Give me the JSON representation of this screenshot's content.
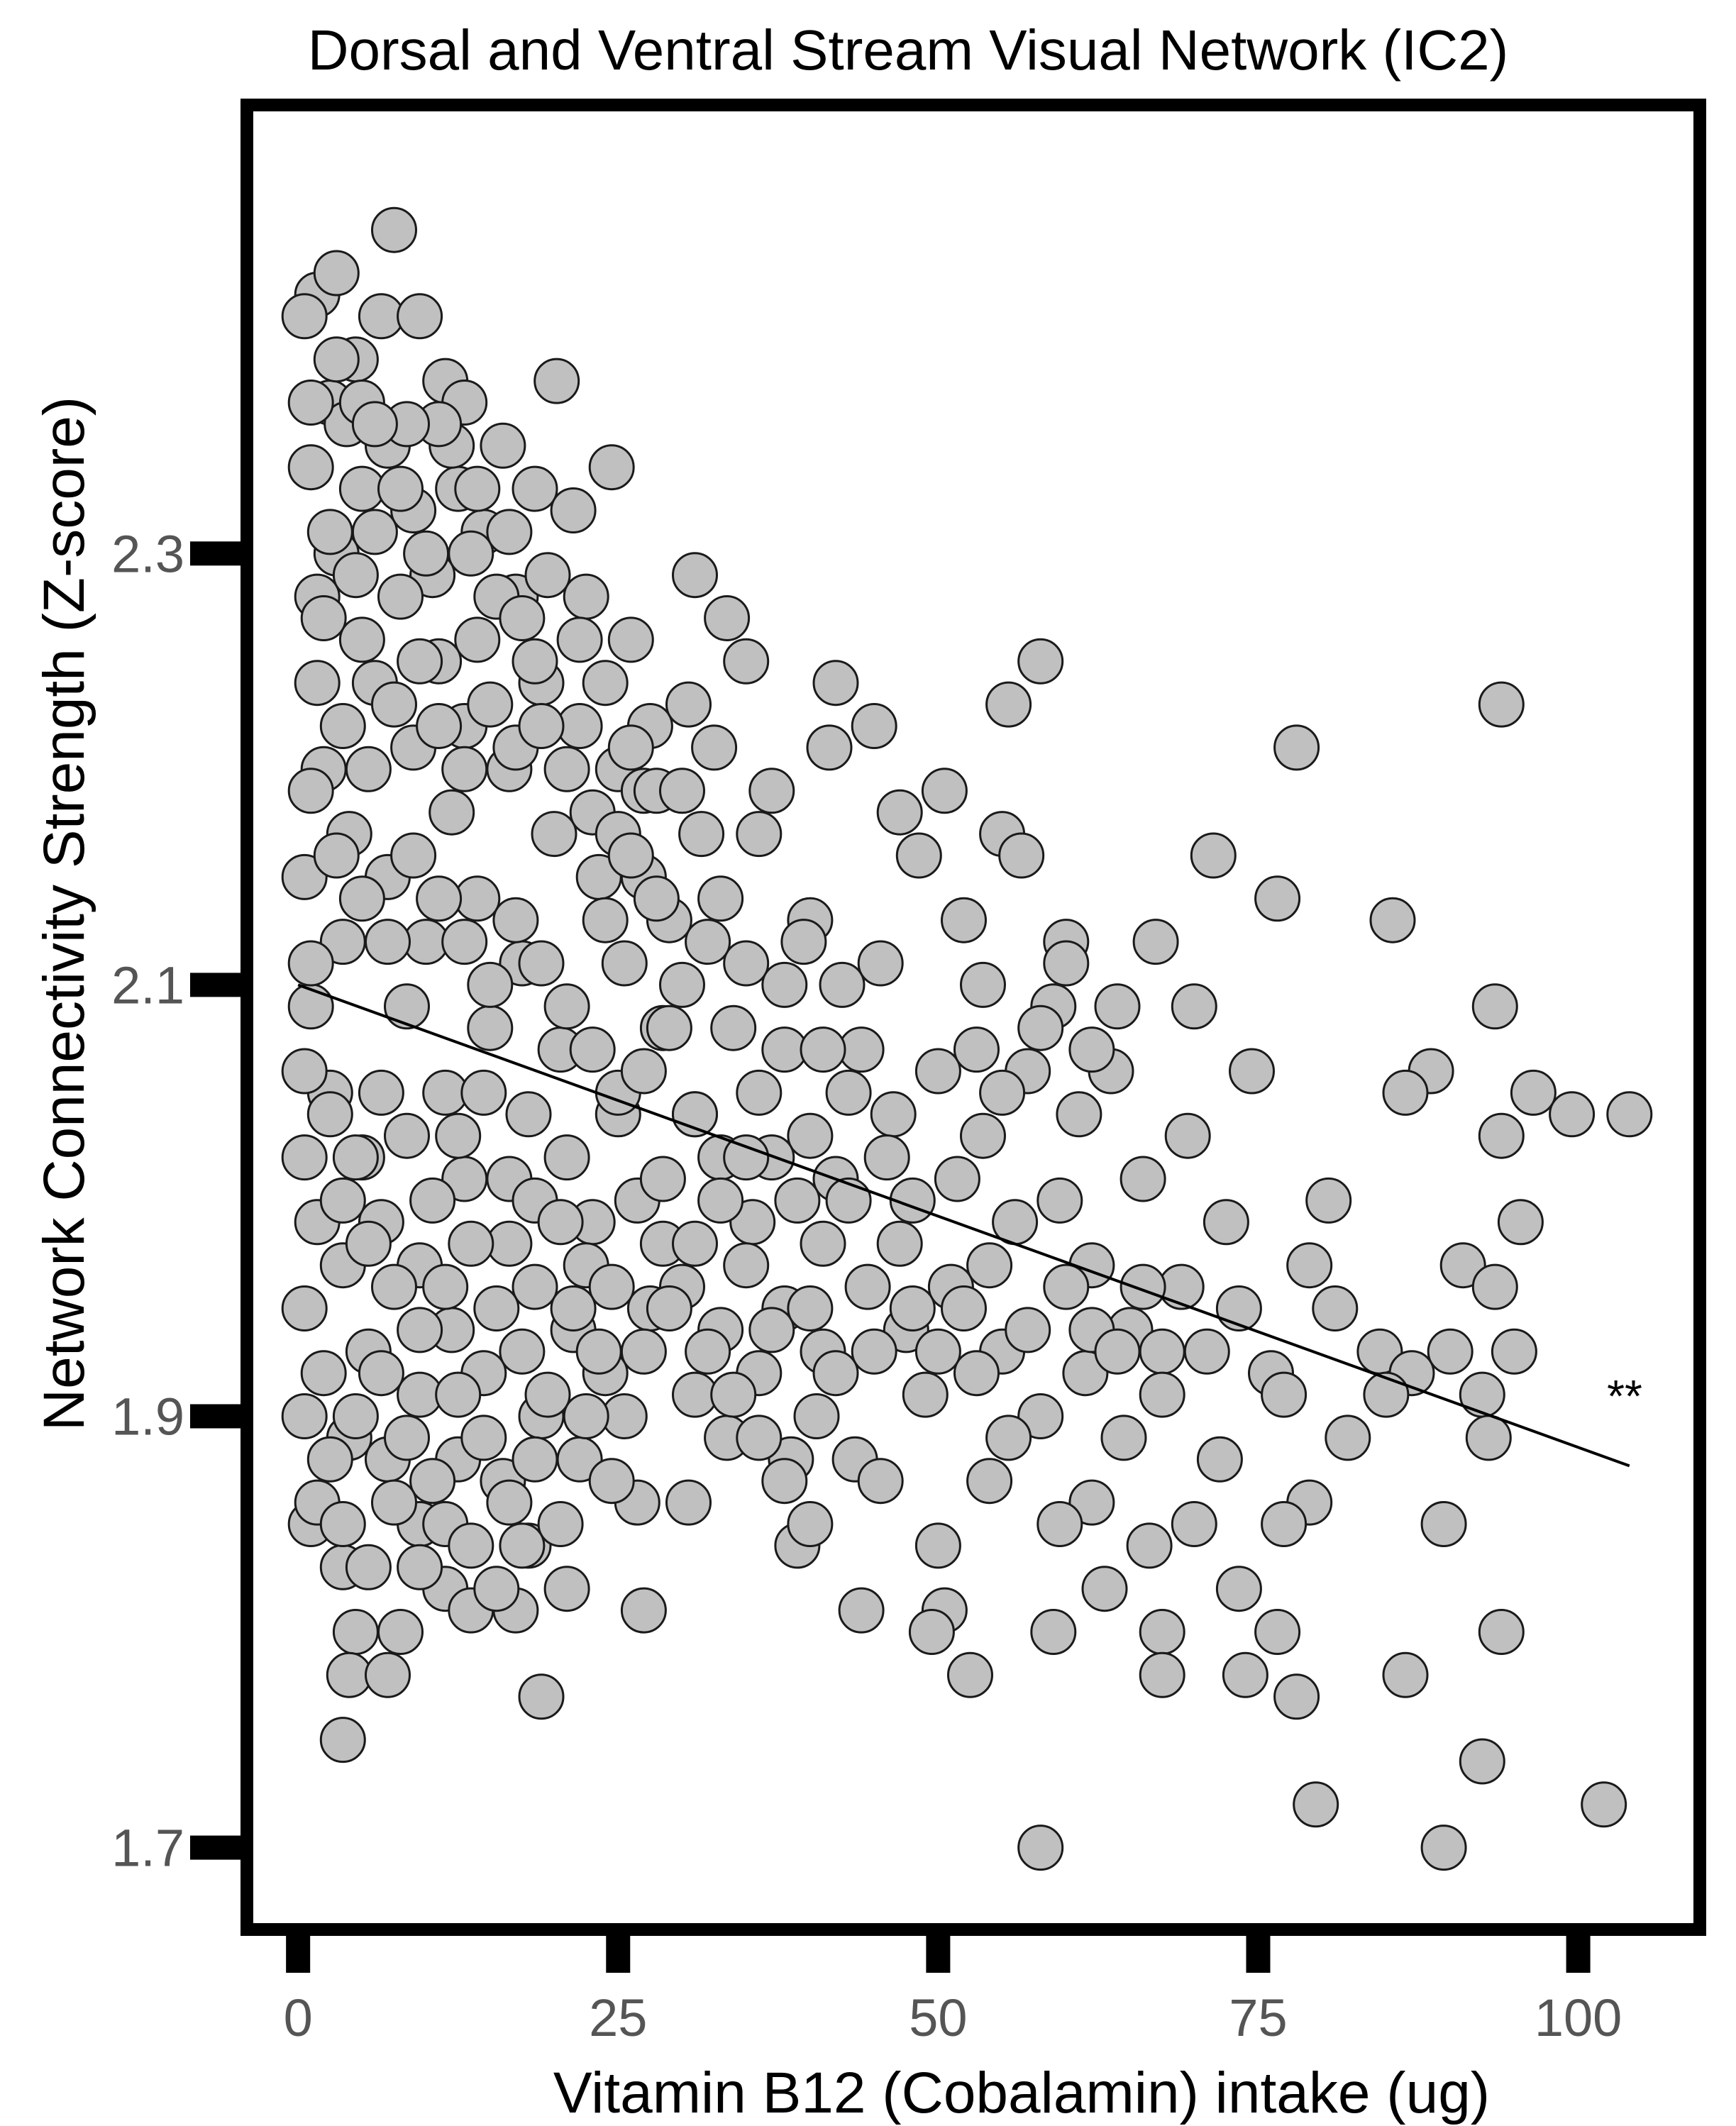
{
  "chart_data": {
    "type": "scatter",
    "title": "Dorsal and Ventral Stream Visual Network (IC2)",
    "xlabel": "Vitamin B12 (Cobalamin) intake (ug)",
    "ylabel": "Network Connectivity Strength (Z-score)",
    "xlim": [
      -3.5,
      109
    ],
    "ylim": [
      1.665,
      2.505
    ],
    "xticks": [
      0,
      25,
      50,
      75,
      100
    ],
    "xtick_labels": [
      "0",
      "25",
      "50",
      "75",
      "100"
    ],
    "yticks": [
      1.7,
      1.9,
      2.1,
      2.3
    ],
    "ytick_labels": [
      "1.7",
      "1.9",
      "2.1",
      "2.3"
    ],
    "grid": false,
    "legend": "none",
    "annotation": "**",
    "colors": {
      "point_fill": "#c0c0c0",
      "point_stroke": "#1a1a1a",
      "line": "#000000",
      "frame": "#000000"
    },
    "trend_line": {
      "x": [
        0,
        104
      ],
      "y": [
        2.1,
        1.877
      ]
    },
    "points": [
      [
        7.5,
        2.45
      ],
      [
        1.5,
        2.42
      ],
      [
        3,
        2.43
      ],
      [
        6.5,
        2.41
      ],
      [
        9.5,
        2.41
      ],
      [
        0.5,
        2.41
      ],
      [
        4.5,
        2.39
      ],
      [
        2.5,
        2.37
      ],
      [
        11.5,
        2.38
      ],
      [
        20.2,
        2.38
      ],
      [
        13,
        2.37
      ],
      [
        3.8,
        2.36
      ],
      [
        7,
        2.35
      ],
      [
        16,
        2.35
      ],
      [
        24.5,
        2.34
      ],
      [
        12.5,
        2.33
      ],
      [
        18.5,
        2.33
      ],
      [
        5,
        2.33
      ],
      [
        9,
        2.32
      ],
      [
        14.5,
        2.31
      ],
      [
        21.5,
        2.32
      ],
      [
        3,
        2.3
      ],
      [
        10.5,
        2.29
      ],
      [
        31,
        2.29
      ],
      [
        17,
        2.28
      ],
      [
        8,
        2.28
      ],
      [
        1.5,
        2.28
      ],
      [
        22.5,
        2.28
      ],
      [
        33.5,
        2.27
      ],
      [
        14,
        2.26
      ],
      [
        26,
        2.26
      ],
      [
        5,
        2.26
      ],
      [
        11,
        2.25
      ],
      [
        19,
        2.24
      ],
      [
        35,
        2.25
      ],
      [
        42,
        2.24
      ],
      [
        58,
        2.25
      ],
      [
        6,
        2.24
      ],
      [
        13,
        2.22
      ],
      [
        22,
        2.22
      ],
      [
        27.5,
        2.22
      ],
      [
        30.5,
        2.23
      ],
      [
        45,
        2.22
      ],
      [
        55.5,
        2.23
      ],
      [
        94,
        2.23
      ],
      [
        2,
        2.2
      ],
      [
        9,
        2.21
      ],
      [
        16.5,
        2.2
      ],
      [
        25,
        2.2
      ],
      [
        37,
        2.19
      ],
      [
        41.5,
        2.21
      ],
      [
        50.5,
        2.19
      ],
      [
        78,
        2.21
      ],
      [
        4,
        2.17
      ],
      [
        12,
        2.18
      ],
      [
        20,
        2.17
      ],
      [
        27,
        2.19
      ],
      [
        31.5,
        2.17
      ],
      [
        36,
        2.17
      ],
      [
        47,
        2.18
      ],
      [
        48.5,
        2.16
      ],
      [
        55,
        2.17
      ],
      [
        56.5,
        2.16
      ],
      [
        71.5,
        2.16
      ],
      [
        0.5,
        2.15
      ],
      [
        7,
        2.15
      ],
      [
        14,
        2.14
      ],
      [
        23.5,
        2.15
      ],
      [
        33,
        2.14
      ],
      [
        40,
        2.13
      ],
      [
        52,
        2.13
      ],
      [
        60,
        2.12
      ],
      [
        67,
        2.12
      ],
      [
        76.5,
        2.14
      ],
      [
        85.5,
        2.13
      ],
      [
        3.5,
        2.12
      ],
      [
        10,
        2.12
      ],
      [
        17.5,
        2.11
      ],
      [
        25.5,
        2.11
      ],
      [
        35,
        2.11
      ],
      [
        42.5,
        2.1
      ],
      [
        45.5,
        2.11
      ],
      [
        53.5,
        2.1
      ],
      [
        59,
        2.09
      ],
      [
        70,
        2.09
      ],
      [
        93.5,
        2.09
      ],
      [
        1,
        2.09
      ],
      [
        8.5,
        2.09
      ],
      [
        15,
        2.08
      ],
      [
        20.5,
        2.07
      ],
      [
        28.5,
        2.08
      ],
      [
        38,
        2.07
      ],
      [
        44,
        2.07
      ],
      [
        50,
        2.06
      ],
      [
        57,
        2.06
      ],
      [
        63.5,
        2.06
      ],
      [
        74.5,
        2.06
      ],
      [
        88.5,
        2.06
      ],
      [
        96.5,
        2.05
      ],
      [
        2.5,
        2.05
      ],
      [
        11.5,
        2.05
      ],
      [
        18,
        2.04
      ],
      [
        25,
        2.04
      ],
      [
        31,
        2.04
      ],
      [
        40,
        2.03
      ],
      [
        46.5,
        2.04
      ],
      [
        53.5,
        2.03
      ],
      [
        61,
        2.04
      ],
      [
        69.5,
        2.03
      ],
      [
        86.5,
        2.05
      ],
      [
        99.5,
        2.04
      ],
      [
        104,
        2.04
      ],
      [
        5,
        2.02
      ],
      [
        13,
        2.01
      ],
      [
        21,
        2.02
      ],
      [
        33,
        2.02
      ],
      [
        42,
        2.01
      ],
      [
        51.5,
        2.01
      ],
      [
        59.5,
        2.0
      ],
      [
        66,
        2.01
      ],
      [
        94,
        2.03
      ],
      [
        6.5,
        1.99
      ],
      [
        16.5,
        1.98
      ],
      [
        23,
        1.99
      ],
      [
        28.5,
        1.98
      ],
      [
        35.5,
        1.99
      ],
      [
        47,
        1.98
      ],
      [
        56,
        1.99
      ],
      [
        72.5,
        1.99
      ],
      [
        80.5,
        2.0
      ],
      [
        95.5,
        1.99
      ],
      [
        3.5,
        1.97
      ],
      [
        9.5,
        1.97
      ],
      [
        18.5,
        1.96
      ],
      [
        30,
        1.96
      ],
      [
        38,
        1.95
      ],
      [
        44.5,
        1.96
      ],
      [
        51,
        1.96
      ],
      [
        62,
        1.97
      ],
      [
        69,
        1.96
      ],
      [
        79,
        1.97
      ],
      [
        91,
        1.97
      ],
      [
        0.5,
        1.95
      ],
      [
        12,
        1.94
      ],
      [
        21.5,
        1.94
      ],
      [
        27.5,
        1.95
      ],
      [
        33,
        1.94
      ],
      [
        41,
        1.93
      ],
      [
        47.5,
        1.94
      ],
      [
        55,
        1.93
      ],
      [
        65,
        1.94
      ],
      [
        73.5,
        1.95
      ],
      [
        81,
        1.95
      ],
      [
        93.5,
        1.96
      ],
      [
        5.5,
        1.93
      ],
      [
        14.5,
        1.92
      ],
      [
        24,
        1.92
      ],
      [
        36,
        1.92
      ],
      [
        45,
        1.93
      ],
      [
        53,
        1.92
      ],
      [
        61.5,
        1.92
      ],
      [
        67.5,
        1.93
      ],
      [
        76,
        1.92
      ],
      [
        84.5,
        1.93
      ],
      [
        87,
        1.92
      ],
      [
        90,
        1.93
      ],
      [
        95,
        1.93
      ],
      [
        2,
        1.92
      ],
      [
        9.5,
        1.91
      ],
      [
        19,
        1.9
      ],
      [
        31,
        1.91
      ],
      [
        40.5,
        1.9
      ],
      [
        49,
        1.91
      ],
      [
        58,
        1.9
      ],
      [
        67.5,
        1.91
      ],
      [
        77,
        1.91
      ],
      [
        85,
        1.91
      ],
      [
        92.5,
        1.91
      ],
      [
        4,
        1.89
      ],
      [
        12.5,
        1.88
      ],
      [
        22,
        1.88
      ],
      [
        33.5,
        1.89
      ],
      [
        43.5,
        1.88
      ],
      [
        55.5,
        1.89
      ],
      [
        64.5,
        1.89
      ],
      [
        72,
        1.88
      ],
      [
        82,
        1.89
      ],
      [
        93,
        1.89
      ],
      [
        7,
        1.88
      ],
      [
        16,
        1.87
      ],
      [
        26.5,
        1.86
      ],
      [
        38.5,
        1.88
      ],
      [
        45.5,
        1.87
      ],
      [
        54,
        1.87
      ],
      [
        62,
        1.86
      ],
      [
        70,
        1.85
      ],
      [
        79,
        1.86
      ],
      [
        89.5,
        1.85
      ],
      [
        1,
        1.85
      ],
      [
        9.5,
        1.85
      ],
      [
        18,
        1.84
      ],
      [
        30.5,
        1.86
      ],
      [
        39,
        1.84
      ],
      [
        50,
        1.84
      ],
      [
        59.5,
        1.85
      ],
      [
        66.5,
        1.84
      ],
      [
        77,
        1.85
      ],
      [
        3.5,
        1.83
      ],
      [
        11.5,
        1.82
      ],
      [
        21,
        1.82
      ],
      [
        27,
        1.81
      ],
      [
        44,
        1.81
      ],
      [
        50.5,
        1.81
      ],
      [
        63,
        1.82
      ],
      [
        73.5,
        1.82
      ],
      [
        4.5,
        1.8
      ],
      [
        8,
        1.8
      ],
      [
        13.5,
        1.81
      ],
      [
        17,
        1.81
      ],
      [
        49.5,
        1.8
      ],
      [
        59,
        1.8
      ],
      [
        67.5,
        1.8
      ],
      [
        76.5,
        1.8
      ],
      [
        94,
        1.8
      ],
      [
        4,
        1.78
      ],
      [
        7,
        1.78
      ],
      [
        19,
        1.77
      ],
      [
        52.5,
        1.78
      ],
      [
        67.5,
        1.78
      ],
      [
        74,
        1.78
      ],
      [
        78,
        1.77
      ],
      [
        86.5,
        1.78
      ],
      [
        3.5,
        1.75
      ],
      [
        92.5,
        1.74
      ],
      [
        79.5,
        1.72
      ],
      [
        102,
        1.72
      ],
      [
        58,
        1.7
      ],
      [
        89.5,
        1.7
      ],
      [
        1,
        2.34
      ],
      [
        2.5,
        2.31
      ],
      [
        4.5,
        2.29
      ],
      [
        6,
        2.31
      ],
      [
        8,
        2.33
      ],
      [
        10,
        2.3
      ],
      [
        12,
        2.35
      ],
      [
        13.5,
        2.3
      ],
      [
        15.5,
        2.28
      ],
      [
        17.5,
        2.27
      ],
      [
        19.5,
        2.29
      ],
      [
        1.5,
        2.24
      ],
      [
        3.5,
        2.22
      ],
      [
        5.5,
        2.2
      ],
      [
        7.5,
        2.23
      ],
      [
        9.5,
        2.25
      ],
      [
        11,
        2.22
      ],
      [
        13,
        2.2
      ],
      [
        15,
        2.23
      ],
      [
        17,
        2.21
      ],
      [
        19,
        2.22
      ],
      [
        21,
        2.2
      ],
      [
        23,
        2.18
      ],
      [
        25,
        2.17
      ],
      [
        27,
        2.15
      ],
      [
        29,
        2.13
      ],
      [
        1,
        2.19
      ],
      [
        3,
        2.16
      ],
      [
        5,
        2.14
      ],
      [
        7,
        2.12
      ],
      [
        9,
        2.16
      ],
      [
        11,
        2.14
      ],
      [
        13,
        2.12
      ],
      [
        15,
        2.1
      ],
      [
        17,
        2.13
      ],
      [
        19,
        2.11
      ],
      [
        21,
        2.09
      ],
      [
        23,
        2.07
      ],
      [
        25,
        2.05
      ],
      [
        27,
        2.06
      ],
      [
        29,
        2.08
      ],
      [
        31,
        2.04
      ],
      [
        0.5,
        2.06
      ],
      [
        2.5,
        2.04
      ],
      [
        4.5,
        2.02
      ],
      [
        6.5,
        2.05
      ],
      [
        8.5,
        2.03
      ],
      [
        10.5,
        2.0
      ],
      [
        12.5,
        2.03
      ],
      [
        14.5,
        2.05
      ],
      [
        16.5,
        2.01
      ],
      [
        18.5,
        2.0
      ],
      [
        20.5,
        1.99
      ],
      [
        22.5,
        1.97
      ],
      [
        24.5,
        1.96
      ],
      [
        26.5,
        2.0
      ],
      [
        28.5,
        2.01
      ],
      [
        1.5,
        1.99
      ],
      [
        3.5,
        2.0
      ],
      [
        5.5,
        1.98
      ],
      [
        7.5,
        1.96
      ],
      [
        9.5,
        1.94
      ],
      [
        11.5,
        1.96
      ],
      [
        13.5,
        1.98
      ],
      [
        15.5,
        1.95
      ],
      [
        17.5,
        1.93
      ],
      [
        19.5,
        1.91
      ],
      [
        21.5,
        1.95
      ],
      [
        23.5,
        1.93
      ],
      [
        25.5,
        1.9
      ],
      [
        0.5,
        1.9
      ],
      [
        2.5,
        1.88
      ],
      [
        4.5,
        1.9
      ],
      [
        6.5,
        1.92
      ],
      [
        8.5,
        1.89
      ],
      [
        10.5,
        1.87
      ],
      [
        12.5,
        1.91
      ],
      [
        14.5,
        1.89
      ],
      [
        16.5,
        1.86
      ],
      [
        18.5,
        1.88
      ],
      [
        20.5,
        1.85
      ],
      [
        22.5,
        1.9
      ],
      [
        24.5,
        1.87
      ],
      [
        1.5,
        1.86
      ],
      [
        3.5,
        1.85
      ],
      [
        5.5,
        1.83
      ],
      [
        7.5,
        1.86
      ],
      [
        9.5,
        1.83
      ],
      [
        11.5,
        1.85
      ],
      [
        13.5,
        1.84
      ],
      [
        15.5,
        1.82
      ],
      [
        17.5,
        1.84
      ],
      [
        0.5,
        2.02
      ],
      [
        1,
        2.11
      ],
      [
        2,
        2.27
      ],
      [
        1,
        2.37
      ],
      [
        3,
        2.39
      ],
      [
        5,
        2.37
      ],
      [
        34,
        2.08
      ],
      [
        36,
        2.05
      ],
      [
        38,
        2.1
      ],
      [
        39.5,
        2.12
      ],
      [
        41,
        2.07
      ],
      [
        43,
        2.05
      ],
      [
        37,
        2.02
      ],
      [
        39,
        2.0
      ],
      [
        41,
        1.98
      ],
      [
        43,
        2.0
      ],
      [
        46,
        2.02
      ],
      [
        48,
        2.0
      ],
      [
        35,
        1.97
      ],
      [
        37,
        1.94
      ],
      [
        40,
        1.95
      ],
      [
        42,
        1.92
      ],
      [
        48,
        1.95
      ],
      [
        50,
        1.93
      ],
      [
        52,
        1.95
      ],
      [
        54,
        1.97
      ],
      [
        57,
        1.94
      ],
      [
        60,
        1.96
      ],
      [
        62,
        1.94
      ],
      [
        64,
        1.93
      ],
      [
        66,
        1.96
      ],
      [
        71,
        1.93
      ],
      [
        53,
        2.07
      ],
      [
        55,
        2.05
      ],
      [
        58,
        2.08
      ],
      [
        60,
        2.11
      ],
      [
        62,
        2.07
      ],
      [
        64,
        2.09
      ],
      [
        32,
        2.12
      ],
      [
        30,
        2.1
      ],
      [
        28,
        2.14
      ],
      [
        26,
        2.16
      ],
      [
        24,
        2.13
      ],
      [
        35,
        2.02
      ],
      [
        33,
        2.0
      ],
      [
        31,
        1.98
      ],
      [
        29,
        1.95
      ],
      [
        27,
        1.93
      ],
      [
        32,
        1.93
      ],
      [
        34,
        1.91
      ],
      [
        36,
        1.89
      ],
      [
        38,
        1.87
      ],
      [
        40,
        1.85
      ],
      [
        11,
        2.36
      ],
      [
        8.5,
        2.36
      ],
      [
        6,
        2.36
      ],
      [
        14,
        2.33
      ],
      [
        16.5,
        2.31
      ],
      [
        18.5,
        2.25
      ],
      [
        22,
        2.26
      ],
      [
        24,
        2.24
      ],
      [
        26,
        2.21
      ],
      [
        28,
        2.19
      ],
      [
        30,
        2.19
      ],
      [
        32.5,
        2.21
      ]
    ]
  }
}
